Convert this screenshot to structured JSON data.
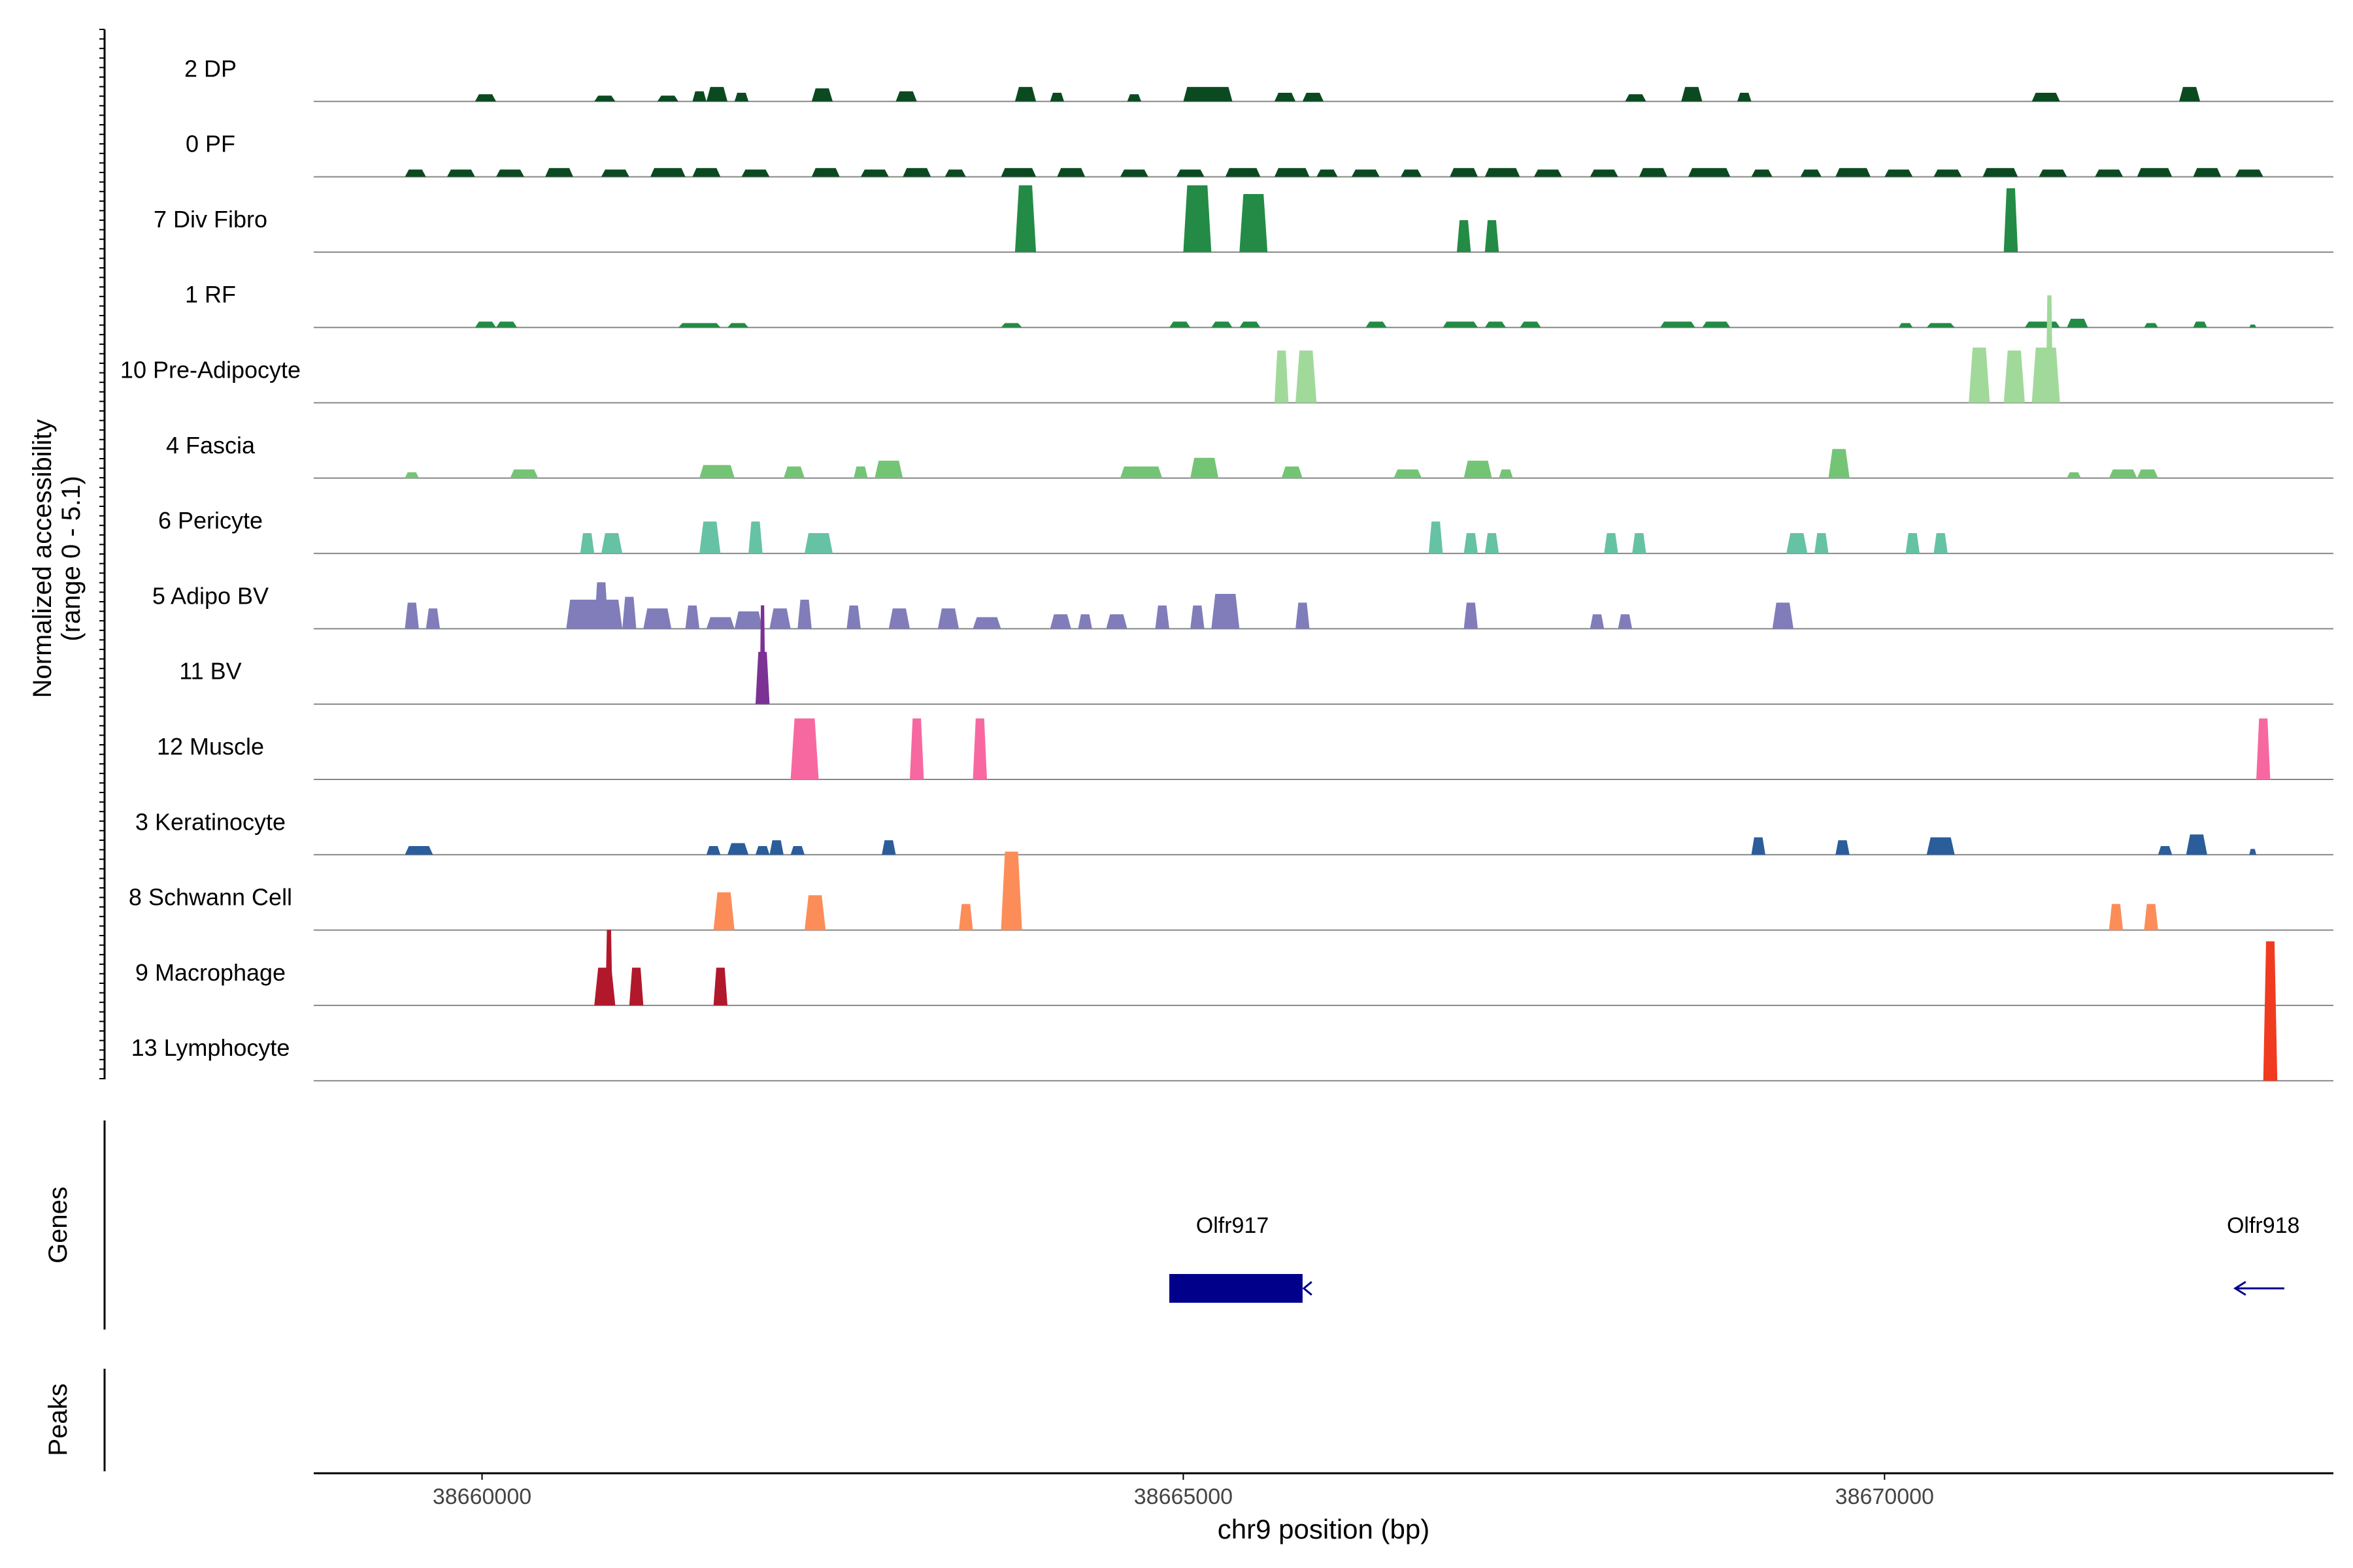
{
  "chart_data": {
    "type": "area",
    "ylabel_line1": "Normalized accessibility",
    "ylabel_line2": "(range 0 - 5.1)",
    "xlabel": "chr9 position (bp)",
    "xlim": [
      38658800,
      38673200
    ],
    "x_ticks": [
      38660000,
      38665000,
      38670000
    ],
    "x_tick_labels": [
      "38660000",
      "38665000",
      "38670000"
    ],
    "ylim": [
      0,
      5.1
    ],
    "tracks": [
      {
        "name": "2 DP",
        "color": "#0b4a21",
        "peaks": [
          [
            38659950,
            38660100,
            0.25
          ],
          [
            38660800,
            38660950,
            0.2
          ],
          [
            38661250,
            38661400,
            0.2
          ],
          [
            38661500,
            38661600,
            0.35
          ],
          [
            38661600,
            38661750,
            0.5
          ],
          [
            38661800,
            38661900,
            0.3
          ],
          [
            38662350,
            38662500,
            0.45
          ],
          [
            38662950,
            38663100,
            0.35
          ],
          [
            38663800,
            38663950,
            0.5
          ],
          [
            38664050,
            38664150,
            0.3
          ],
          [
            38664600,
            38664700,
            0.25
          ],
          [
            38665000,
            38665350,
            0.5
          ],
          [
            38665650,
            38665800,
            0.3
          ],
          [
            38665850,
            38666000,
            0.3
          ],
          [
            38668150,
            38668300,
            0.25
          ],
          [
            38668550,
            38668700,
            0.5
          ],
          [
            38668950,
            38669050,
            0.3
          ],
          [
            38671050,
            38671250,
            0.3
          ],
          [
            38672100,
            38672250,
            0.5
          ]
        ]
      },
      {
        "name": "0 PF",
        "color": "#0b4a21",
        "peaks": [
          [
            38659450,
            38659600,
            0.25
          ],
          [
            38659750,
            38659950,
            0.25
          ],
          [
            38660100,
            38660300,
            0.25
          ],
          [
            38660450,
            38660650,
            0.3
          ],
          [
            38660850,
            38661050,
            0.25
          ],
          [
            38661200,
            38661450,
            0.3
          ],
          [
            38661500,
            38661700,
            0.3
          ],
          [
            38661850,
            38662050,
            0.25
          ],
          [
            38662350,
            38662550,
            0.3
          ],
          [
            38662700,
            38662900,
            0.25
          ],
          [
            38663000,
            38663200,
            0.3
          ],
          [
            38663300,
            38663450,
            0.25
          ],
          [
            38663700,
            38663950,
            0.3
          ],
          [
            38664100,
            38664300,
            0.3
          ],
          [
            38664550,
            38664750,
            0.25
          ],
          [
            38664950,
            38665150,
            0.25
          ],
          [
            38665300,
            38665550,
            0.3
          ],
          [
            38665650,
            38665900,
            0.3
          ],
          [
            38665950,
            38666100,
            0.25
          ],
          [
            38666200,
            38666400,
            0.25
          ],
          [
            38666550,
            38666700,
            0.25
          ],
          [
            38666900,
            38667100,
            0.3
          ],
          [
            38667150,
            38667400,
            0.3
          ],
          [
            38667500,
            38667700,
            0.25
          ],
          [
            38667900,
            38668100,
            0.25
          ],
          [
            38668250,
            38668450,
            0.3
          ],
          [
            38668600,
            38668900,
            0.3
          ],
          [
            38669050,
            38669200,
            0.25
          ],
          [
            38669400,
            38669550,
            0.25
          ],
          [
            38669650,
            38669900,
            0.3
          ],
          [
            38670000,
            38670200,
            0.25
          ],
          [
            38670350,
            38670550,
            0.25
          ],
          [
            38670700,
            38670950,
            0.3
          ],
          [
            38671100,
            38671300,
            0.25
          ],
          [
            38671500,
            38671700,
            0.25
          ],
          [
            38671800,
            38672050,
            0.3
          ],
          [
            38672200,
            38672400,
            0.3
          ],
          [
            38672500,
            38672700,
            0.25
          ]
        ]
      },
      {
        "name": "7 Div Fibro",
        "color": "#238b45",
        "peaks": [
          [
            38663800,
            38663950,
            2.3
          ],
          [
            38665000,
            38665200,
            2.3
          ],
          [
            38665400,
            38665600,
            2.0
          ],
          [
            38666950,
            38667050,
            1.1
          ],
          [
            38667150,
            38667250,
            1.1
          ],
          [
            38670850,
            38670950,
            2.2
          ]
        ]
      },
      {
        "name": "1 RF",
        "color": "#238b45",
        "peaks": [
          [
            38659950,
            38660100,
            0.2
          ],
          [
            38660100,
            38660250,
            0.2
          ],
          [
            38661400,
            38661700,
            0.15
          ],
          [
            38661750,
            38661900,
            0.15
          ],
          [
            38663700,
            38663850,
            0.15
          ],
          [
            38664900,
            38665050,
            0.2
          ],
          [
            38665200,
            38665350,
            0.2
          ],
          [
            38665400,
            38665550,
            0.2
          ],
          [
            38666300,
            38666450,
            0.2
          ],
          [
            38666850,
            38667100,
            0.2
          ],
          [
            38667150,
            38667300,
            0.2
          ],
          [
            38667400,
            38667550,
            0.2
          ],
          [
            38668400,
            38668650,
            0.2
          ],
          [
            38668700,
            38668900,
            0.2
          ],
          [
            38670100,
            38670200,
            0.15
          ],
          [
            38670300,
            38670500,
            0.15
          ],
          [
            38671000,
            38671250,
            0.2
          ],
          [
            38671300,
            38671450,
            0.3
          ],
          [
            38671850,
            38671950,
            0.15
          ],
          [
            38672200,
            38672300,
            0.2
          ],
          [
            38672600,
            38672650,
            0.1
          ]
        ]
      },
      {
        "name": "10 Pre-Adipocyte",
        "color": "#a1d99b",
        "peaks": [
          [
            38665650,
            38665750,
            1.8
          ],
          [
            38665800,
            38665950,
            1.8
          ],
          [
            38670600,
            38670750,
            1.9
          ],
          [
            38670850,
            38671000,
            1.8
          ],
          [
            38671050,
            38671250,
            1.9
          ],
          [
            38671150,
            38671200,
            3.7
          ]
        ]
      },
      {
        "name": "4 Fascia",
        "color": "#74c476",
        "peaks": [
          [
            38659450,
            38659550,
            0.2
          ],
          [
            38660200,
            38660400,
            0.3
          ],
          [
            38661550,
            38661800,
            0.45
          ],
          [
            38662150,
            38662300,
            0.4
          ],
          [
            38662650,
            38662750,
            0.4
          ],
          [
            38662800,
            38663000,
            0.6
          ],
          [
            38664550,
            38664850,
            0.4
          ],
          [
            38665050,
            38665250,
            0.7
          ],
          [
            38665700,
            38665850,
            0.4
          ],
          [
            38666500,
            38666700,
            0.3
          ],
          [
            38667000,
            38667200,
            0.6
          ],
          [
            38667250,
            38667350,
            0.3
          ],
          [
            38669600,
            38669750,
            1.0
          ],
          [
            38671300,
            38671400,
            0.2
          ],
          [
            38671600,
            38671800,
            0.3
          ],
          [
            38671800,
            38671950,
            0.3
          ]
        ]
      },
      {
        "name": "6 Pericyte",
        "color": "#66c2a4",
        "peaks": [
          [
            38660700,
            38660800,
            0.7
          ],
          [
            38660850,
            38661000,
            0.7
          ],
          [
            38661550,
            38661700,
            1.1
          ],
          [
            38661900,
            38662000,
            1.1
          ],
          [
            38662300,
            38662500,
            0.7
          ],
          [
            38666750,
            38666850,
            1.1
          ],
          [
            38667000,
            38667100,
            0.7
          ],
          [
            38667150,
            38667250,
            0.7
          ],
          [
            38668000,
            38668100,
            0.7
          ],
          [
            38668200,
            38668300,
            0.7
          ],
          [
            38669300,
            38669450,
            0.7
          ],
          [
            38669500,
            38669600,
            0.7
          ],
          [
            38670150,
            38670250,
            0.7
          ],
          [
            38670350,
            38670450,
            0.7
          ]
        ]
      },
      {
        "name": "5 Adipo BV",
        "color": "#807dba",
        "peaks": [
          [
            38659450,
            38659550,
            0.9
          ],
          [
            38659600,
            38659700,
            0.7
          ],
          [
            38660600,
            38661000,
            1.0
          ],
          [
            38660800,
            38660900,
            1.6
          ],
          [
            38661000,
            38661100,
            1.1
          ],
          [
            38661150,
            38661350,
            0.7
          ],
          [
            38661450,
            38661550,
            0.8
          ],
          [
            38661600,
            38661800,
            0.4
          ],
          [
            38661800,
            38662000,
            0.6
          ],
          [
            38662050,
            38662200,
            0.7
          ],
          [
            38662250,
            38662350,
            1.0
          ],
          [
            38662600,
            38662700,
            0.8
          ],
          [
            38662900,
            38663050,
            0.7
          ],
          [
            38663250,
            38663400,
            0.7
          ],
          [
            38663500,
            38663700,
            0.4
          ],
          [
            38664050,
            38664200,
            0.5
          ],
          [
            38664250,
            38664350,
            0.5
          ],
          [
            38664450,
            38664600,
            0.5
          ],
          [
            38664800,
            38664900,
            0.8
          ],
          [
            38665050,
            38665150,
            0.8
          ],
          [
            38665200,
            38665400,
            1.2
          ],
          [
            38665800,
            38665900,
            0.9
          ],
          [
            38667000,
            38667100,
            0.9
          ],
          [
            38667900,
            38668000,
            0.5
          ],
          [
            38668100,
            38668200,
            0.5
          ],
          [
            38669200,
            38669350,
            0.9
          ]
        ]
      },
      {
        "name": "11 BV",
        "color": "#7b3294",
        "peaks": [
          [
            38661950,
            38662050,
            1.8
          ],
          [
            38661980,
            38662020,
            3.4
          ]
        ]
      },
      {
        "name": "12 Muscle",
        "color": "#f768a1",
        "peaks": [
          [
            38662200,
            38662400,
            2.1
          ],
          [
            38663050,
            38663150,
            2.1
          ],
          [
            38663500,
            38663600,
            2.1
          ],
          [
            38672650,
            38672750,
            2.1
          ]
        ]
      },
      {
        "name": "3 Keratinocyte",
        "color": "#2b5d9b",
        "peaks": [
          [
            38659450,
            38659650,
            0.3
          ],
          [
            38661600,
            38661700,
            0.3
          ],
          [
            38661750,
            38661900,
            0.4
          ],
          [
            38661950,
            38662050,
            0.3
          ],
          [
            38662050,
            38662150,
            0.5
          ],
          [
            38662200,
            38662300,
            0.3
          ],
          [
            38662850,
            38662950,
            0.5
          ],
          [
            38669050,
            38669150,
            0.6
          ],
          [
            38669650,
            38669750,
            0.5
          ],
          [
            38670300,
            38670500,
            0.6
          ],
          [
            38671950,
            38672050,
            0.3
          ],
          [
            38672150,
            38672300,
            0.7
          ],
          [
            38672600,
            38672650,
            0.2
          ]
        ]
      },
      {
        "name": "8 Schwann Cell",
        "color": "#fc8d59",
        "peaks": [
          [
            38661650,
            38661800,
            1.3
          ],
          [
            38662300,
            38662450,
            1.2
          ],
          [
            38663400,
            38663500,
            0.9
          ],
          [
            38663700,
            38663850,
            2.7
          ],
          [
            38671600,
            38671700,
            0.9
          ],
          [
            38671850,
            38671950,
            0.9
          ]
        ]
      },
      {
        "name": "9 Macrophage",
        "color": "#b2182b",
        "peaks": [
          [
            38660800,
            38660950,
            1.3
          ],
          [
            38660880,
            38660930,
            2.6
          ],
          [
            38661050,
            38661150,
            1.3
          ],
          [
            38661650,
            38661750,
            1.3
          ]
        ]
      },
      {
        "name": "13 Lymphocyte",
        "color": "#f03b20",
        "peaks": [
          [
            38672700,
            38672800,
            4.8
          ]
        ]
      }
    ],
    "genes_label": "Genes",
    "genes": [
      {
        "name": "Olfr917",
        "start": 38664900,
        "end": 38665850,
        "strand": "-",
        "label_x": 38665350,
        "color": "#00008b"
      },
      {
        "name": "Olfr918",
        "start": 38672500,
        "end": 38672850,
        "strand": "-",
        "label_x": 38672700,
        "color": "#00008b"
      }
    ],
    "peaks_label": "Peaks"
  }
}
